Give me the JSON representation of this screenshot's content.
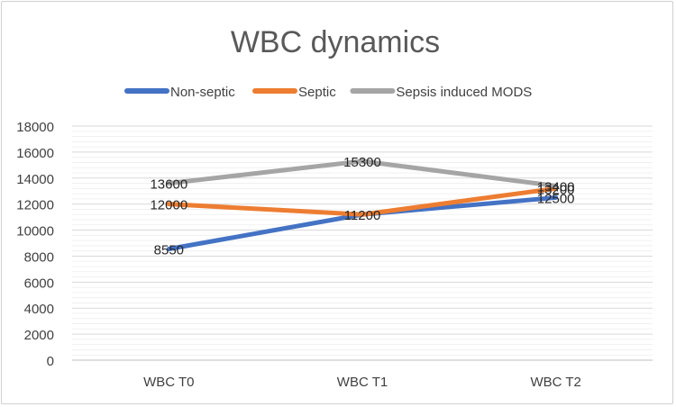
{
  "chart_data": {
    "type": "line",
    "title": "WBC dynamics",
    "categories": [
      "WBC T0",
      "WBC T1",
      "WBC T2"
    ],
    "ylim": [
      0,
      18000
    ],
    "yticks": [
      0,
      2000,
      4000,
      6000,
      8000,
      10000,
      12000,
      14000,
      16000,
      18000
    ],
    "grid": true,
    "legend_position": "top",
    "series": [
      {
        "name": "Non-septic",
        "color": "#4472C4",
        "values": [
          8550,
          11200,
          12500
        ],
        "labels": [
          "8550",
          "",
          "12500"
        ]
      },
      {
        "name": "Septic",
        "color": "#ED7D31",
        "values": [
          12000,
          11200,
          13200
        ],
        "labels": [
          "12000",
          "11200",
          "13200"
        ]
      },
      {
        "name": "Sepsis induced MODS",
        "color": "#A5A5A5",
        "values": [
          13600,
          15300,
          13400
        ],
        "labels": [
          "13600",
          "15300",
          "13400"
        ]
      }
    ]
  }
}
